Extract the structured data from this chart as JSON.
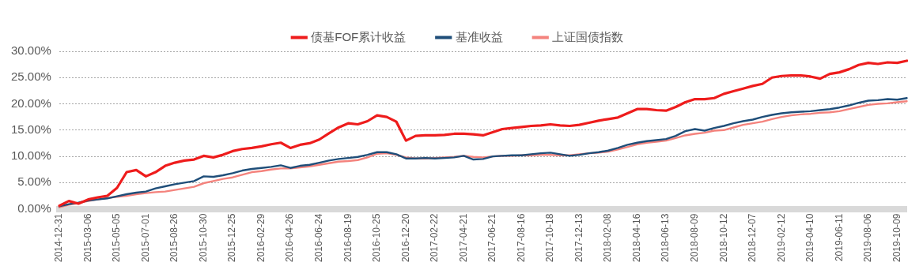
{
  "chart_data": {
    "type": "line",
    "categories": [
      "2014-12-31",
      null,
      null,
      "2015-03-06",
      null,
      null,
      "2015-05-05",
      null,
      null,
      "2015-07-01",
      null,
      null,
      "2015-08-26",
      null,
      null,
      "2015-10-30",
      null,
      null,
      "2015-12-25",
      null,
      null,
      "2016-02-29",
      null,
      null,
      "2016-04-26",
      null,
      null,
      "2016-06-24",
      null,
      null,
      "2016-08-19",
      null,
      null,
      "2016-10-25",
      null,
      null,
      "2016-12-20",
      null,
      null,
      "2017-02-22",
      null,
      null,
      "2017-04-21",
      null,
      null,
      "2017-06-21",
      null,
      null,
      "2017-08-16",
      null,
      null,
      "2017-10-18",
      null,
      null,
      "2017-12-13",
      null,
      null,
      "2018-02-08",
      null,
      null,
      "2018-04-16",
      null,
      null,
      "2018-06-13",
      null,
      null,
      "2018-08-09",
      null,
      null,
      "2018-10-12",
      null,
      null,
      "2018-12-07",
      null,
      null,
      "2019-02-12",
      null,
      null,
      "2019-04-10",
      null,
      null,
      "2019-06-11",
      null,
      null,
      "2019-08-06",
      null,
      null,
      "2019-10-09",
      null
    ],
    "series": [
      {
        "name": "债基FOF累计收益",
        "color": "#ee1c1c",
        "values": [
          0.6,
          1.5,
          1.0,
          1.8,
          2.2,
          2.5,
          4.0,
          7.0,
          7.4,
          6.2,
          7.0,
          8.2,
          8.8,
          9.2,
          9.4,
          10.1,
          9.8,
          10.3,
          11.0,
          11.4,
          11.6,
          11.9,
          12.3,
          12.6,
          11.6,
          12.2,
          12.5,
          13.2,
          14.4,
          15.5,
          16.3,
          16.1,
          16.7,
          17.8,
          17.5,
          16.6,
          13.0,
          13.9,
          14.0,
          14.0,
          14.1,
          14.3,
          14.3,
          14.2,
          14.0,
          14.6,
          15.2,
          15.4,
          15.6,
          15.8,
          15.9,
          16.1,
          15.9,
          15.8,
          16.0,
          16.4,
          16.8,
          17.1,
          17.4,
          18.2,
          19.0,
          19.0,
          18.8,
          18.7,
          19.4,
          20.3,
          20.9,
          20.9,
          21.1,
          21.9,
          22.4,
          22.9,
          23.4,
          23.8,
          25.0,
          25.3,
          25.4,
          25.4,
          25.2,
          24.8,
          25.7,
          26.0,
          26.6,
          27.4,
          27.8,
          27.6,
          27.9,
          27.8,
          28.2
        ]
      },
      {
        "name": "基准收益",
        "color": "#1f4e79",
        "values": [
          0.5,
          0.9,
          1.2,
          1.6,
          1.8,
          2.0,
          2.4,
          2.8,
          3.1,
          3.3,
          3.9,
          4.3,
          4.7,
          5.0,
          5.3,
          6.2,
          6.1,
          6.4,
          6.8,
          7.3,
          7.6,
          7.8,
          8.0,
          8.3,
          7.8,
          8.2,
          8.4,
          8.8,
          9.2,
          9.5,
          9.7,
          9.9,
          10.3,
          10.8,
          10.8,
          10.4,
          9.6,
          9.6,
          9.7,
          9.6,
          9.7,
          9.8,
          10.1,
          9.4,
          9.5,
          10.0,
          10.1,
          10.2,
          10.2,
          10.4,
          10.6,
          10.7,
          10.4,
          10.1,
          10.3,
          10.6,
          10.8,
          11.1,
          11.6,
          12.2,
          12.6,
          12.9,
          13.1,
          13.3,
          13.9,
          14.8,
          15.2,
          14.9,
          15.4,
          15.8,
          16.3,
          16.7,
          17.0,
          17.5,
          17.9,
          18.2,
          18.4,
          18.5,
          18.6,
          18.8,
          19.0,
          19.3,
          19.7,
          20.2,
          20.6,
          20.7,
          20.9,
          20.8,
          21.1
        ]
      },
      {
        "name": "上证国债指数",
        "color": "#f4837d",
        "values": [
          0.3,
          0.8,
          1.1,
          1.5,
          1.8,
          2.1,
          2.3,
          2.5,
          2.8,
          3.0,
          3.2,
          3.3,
          3.6,
          3.9,
          4.2,
          4.9,
          5.3,
          5.7,
          6.0,
          6.5,
          7.0,
          7.2,
          7.5,
          7.7,
          7.7,
          7.9,
          8.1,
          8.4,
          8.7,
          9.0,
          9.1,
          9.3,
          9.8,
          10.5,
          10.6,
          10.3,
          9.8,
          9.6,
          9.6,
          9.7,
          9.8,
          9.9,
          10.1,
          9.9,
          9.8,
          10.0,
          10.1,
          10.1,
          10.2,
          10.2,
          10.3,
          10.3,
          10.2,
          10.2,
          10.4,
          10.6,
          10.7,
          10.9,
          11.3,
          11.8,
          12.3,
          12.6,
          12.8,
          13.0,
          13.5,
          14.0,
          14.3,
          14.5,
          14.9,
          15.0,
          15.5,
          16.0,
          16.3,
          16.6,
          17.1,
          17.5,
          17.8,
          18.0,
          18.1,
          18.3,
          18.4,
          18.6,
          19.0,
          19.4,
          19.8,
          20.0,
          20.1,
          20.3,
          20.5
        ]
      }
    ],
    "ylim": [
      0,
      30
    ],
    "yticks": [
      {
        "value": 0,
        "label": "0.00%"
      },
      {
        "value": 5,
        "label": "5.00%"
      },
      {
        "value": 10,
        "label": "10.00%"
      },
      {
        "value": 15,
        "label": "15.00%"
      },
      {
        "value": 20,
        "label": "20.00%"
      },
      {
        "value": 25,
        "label": "25.00%"
      },
      {
        "value": 30,
        "label": "30.00%"
      }
    ],
    "grid": "y",
    "legend": "top",
    "marker": "none",
    "line_style": "solid"
  }
}
